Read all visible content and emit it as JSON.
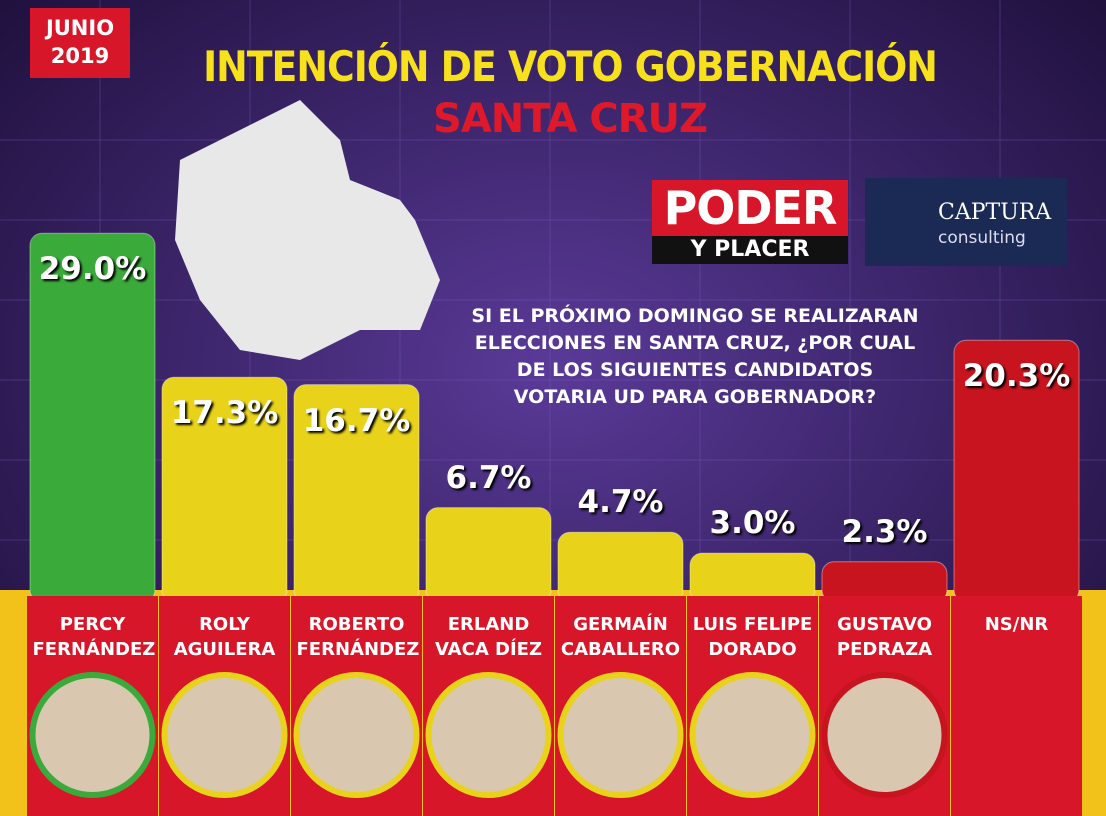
{
  "chart_data": {
    "type": "bar",
    "badge": "JUNIO 2019",
    "title": "INTENCIÓN DE VOTO GOBERNACIÓN",
    "subtitle": "SANTA CRUZ",
    "publisher": {
      "line1": "PODER",
      "line2": "Y PLACER"
    },
    "pollster": {
      "name": "CAPTURA",
      "tagline": "consulting"
    },
    "question": "SI EL PRÓXIMO DOMINGO SE REALIZARAN ELECCIONES EN SANTA CRUZ, ¿POR CUAL DE LOS SIGUIENTES CANDIDATOS VOTARIA UD PARA GOBERNADOR?",
    "categories": [
      "PERCY FERNÁNDEZ",
      "ROLY AGUILERA",
      "ROBERTO FERNÁNDEZ",
      "ERLAND VACA DÍEZ",
      "GERMAÍN CABALLERO",
      "LUIS FELIPE DORADO",
      "GUSTAVO PEDRAZA",
      "NS/NR"
    ],
    "values": [
      29.0,
      17.3,
      16.7,
      6.7,
      4.7,
      3.0,
      2.3,
      20.3
    ],
    "value_labels": [
      "29.0%",
      "17.3%",
      "16.7%",
      "6.7%",
      "4.7%",
      "3.0%",
      "2.3%",
      "20.3%"
    ],
    "colors": [
      "#3aaa3a",
      "#e8d21a",
      "#e8d21a",
      "#e8d21a",
      "#e8d21a",
      "#e8d21a",
      "#c8141e",
      "#c8141e"
    ]
  }
}
